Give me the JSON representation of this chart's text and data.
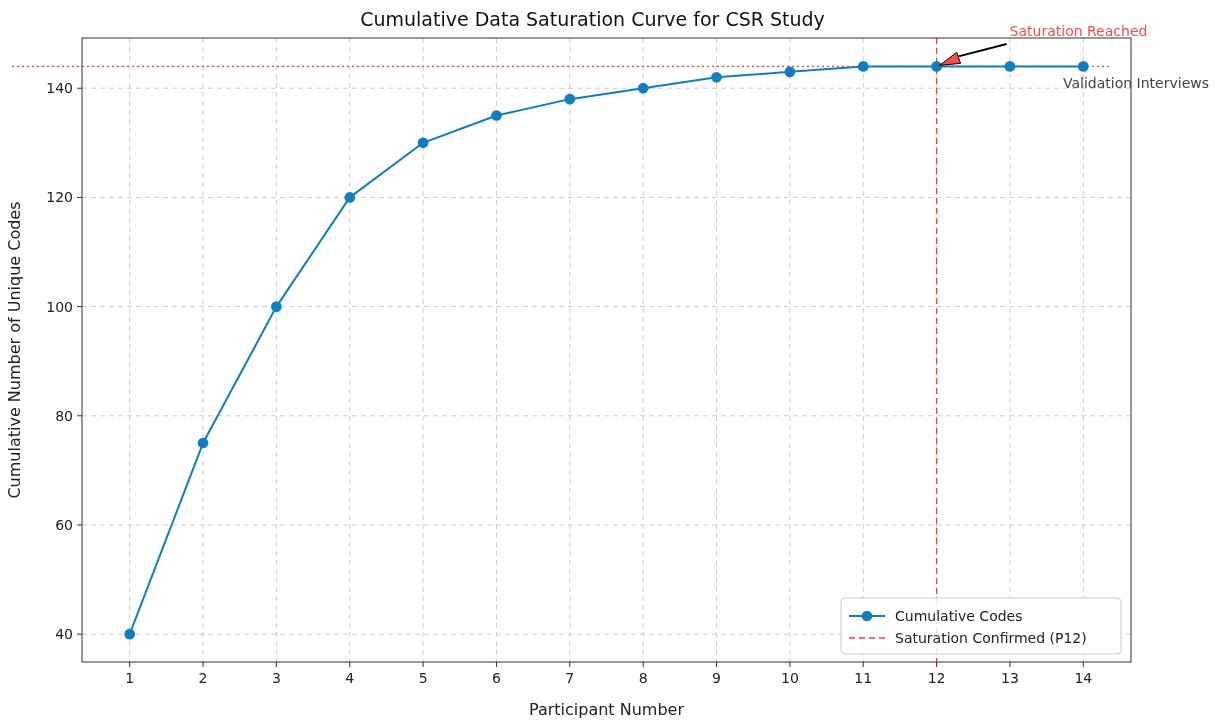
{
  "chart_data": {
    "type": "line",
    "title": "Cumulative Data Saturation Curve for CSR Study",
    "xlabel": "Participant Number",
    "ylabel": "Cumulative Number of Unique Codes",
    "x": [
      1,
      2,
      3,
      4,
      5,
      6,
      7,
      8,
      9,
      10,
      11,
      12,
      13,
      14
    ],
    "series": [
      {
        "name": "Cumulative Codes",
        "color": "#0e7fc0",
        "values": [
          40,
          75,
          100,
          120,
          130,
          135,
          138,
          140,
          142,
          143,
          144,
          144,
          144,
          144
        ]
      }
    ],
    "xlim": [
      0.35,
      14.65
    ],
    "xticks": [
      1,
      2,
      3,
      4,
      5,
      6,
      7,
      8,
      9,
      10,
      11,
      12,
      13,
      14
    ],
    "ylim": [
      34.9,
      149.2
    ],
    "yticks": [
      40,
      60,
      80,
      100,
      120,
      140
    ],
    "ref_lines": [
      {
        "axis": "x",
        "value": 12,
        "label": "Saturation Confirmed (P12)",
        "color": "#ff3b3b",
        "line_style": "dashed"
      },
      {
        "axis": "y",
        "value": 144,
        "color": "#ff3b3b",
        "line_style": "dotted"
      }
    ],
    "annotations": [
      "Saturation Reached",
      "Validation Interviews"
    ],
    "grid": true,
    "legend": "bottom right",
    "marker": "circle",
    "line_style": "solid"
  }
}
